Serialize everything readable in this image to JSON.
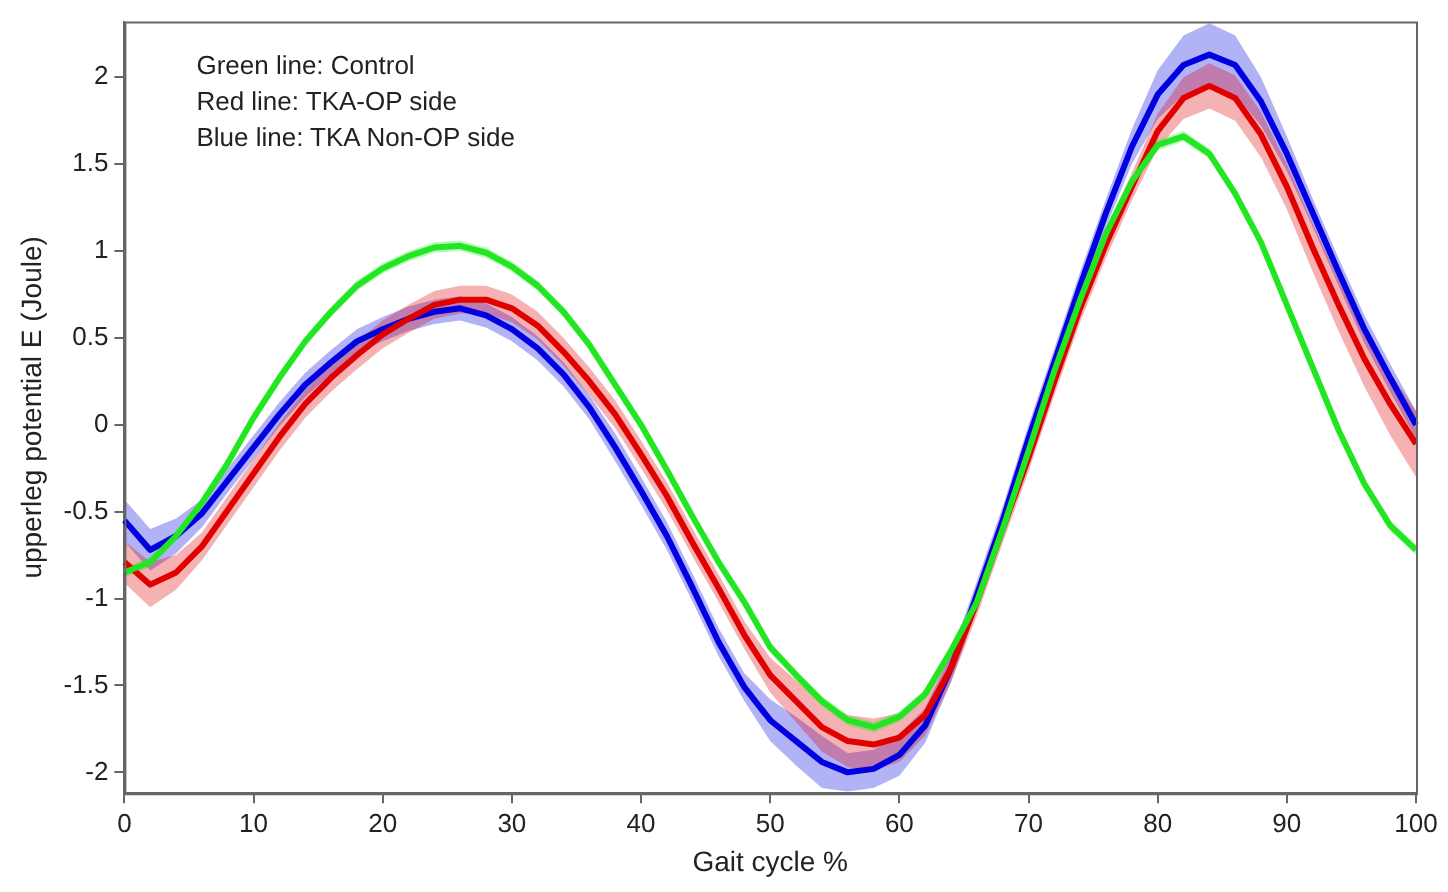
{
  "chart_data": {
    "type": "line",
    "xlabel": "Gait cycle %",
    "ylabel": "upperleg potential E (Joule)",
    "annotations": [
      "Green line: Control",
      "Red line: TKA-OP side",
      "Blue line: TKA Non-OP side"
    ],
    "x": [
      0,
      2,
      4,
      6,
      8,
      10,
      12,
      14,
      16,
      18,
      20,
      22,
      24,
      26,
      28,
      30,
      32,
      34,
      36,
      38,
      40,
      42,
      44,
      46,
      48,
      50,
      52,
      54,
      56,
      58,
      60,
      62,
      64,
      66,
      68,
      70,
      72,
      74,
      76,
      78,
      80,
      82,
      84,
      86,
      88,
      90,
      92,
      94,
      96,
      98,
      100
    ],
    "xlim": [
      0,
      100
    ],
    "xticks": [
      0,
      10,
      20,
      30,
      40,
      50,
      60,
      70,
      80,
      90,
      100
    ],
    "ylim": [
      -2.12,
      2.32
    ],
    "yticks": [
      -2,
      -1.5,
      -1,
      -0.5,
      0,
      0.5,
      1,
      1.5,
      2
    ],
    "grid": false,
    "legend": false,
    "marker": "none",
    "line_style": "solid",
    "series": [
      {
        "color": "#22e622",
        "values": [
          -0.85,
          -0.79,
          -0.64,
          -0.45,
          -0.22,
          0.04,
          0.27,
          0.48,
          0.65,
          0.8,
          0.9,
          0.97,
          1.02,
          1.03,
          0.99,
          0.91,
          0.8,
          0.65,
          0.46,
          0.23,
          0.0,
          -0.26,
          -0.53,
          -0.79,
          -1.02,
          -1.28,
          -1.44,
          -1.59,
          -1.7,
          -1.74,
          -1.68,
          -1.55,
          -1.3,
          -1.02,
          -0.6,
          -0.15,
          0.31,
          0.72,
          1.1,
          1.4,
          1.61,
          1.66,
          1.56,
          1.33,
          1.05,
          0.69,
          0.33,
          -0.03,
          -0.34,
          -0.58,
          -0.72
        ],
        "upper": [
          -0.82,
          -0.76,
          -0.61,
          -0.42,
          -0.19,
          0.07,
          0.3,
          0.51,
          0.68,
          0.83,
          0.93,
          1.0,
          1.05,
          1.06,
          1.02,
          0.94,
          0.83,
          0.68,
          0.49,
          0.26,
          0.03,
          -0.23,
          -0.5,
          -0.76,
          -0.99,
          -1.25,
          -1.41,
          -1.56,
          -1.67,
          -1.71,
          -1.65,
          -1.52,
          -1.27,
          -0.99,
          -0.57,
          -0.12,
          0.34,
          0.75,
          1.13,
          1.43,
          1.64,
          1.69,
          1.59,
          1.36,
          1.08,
          0.72,
          0.36,
          0.0,
          -0.31,
          -0.55,
          -0.69
        ],
        "lower": [
          -0.88,
          -0.82,
          -0.67,
          -0.48,
          -0.25,
          0.01,
          0.24,
          0.45,
          0.62,
          0.77,
          0.87,
          0.94,
          0.99,
          1.0,
          0.96,
          0.88,
          0.77,
          0.62,
          0.43,
          0.2,
          -0.03,
          -0.29,
          -0.56,
          -0.82,
          -1.05,
          -1.31,
          -1.47,
          -1.62,
          -1.73,
          -1.77,
          -1.71,
          -1.58,
          -1.33,
          -1.05,
          -0.63,
          -0.18,
          0.28,
          0.69,
          1.07,
          1.37,
          1.58,
          1.63,
          1.53,
          1.3,
          1.02,
          0.66,
          0.3,
          -0.06,
          -0.37,
          -0.61,
          -0.75
        ]
      },
      {
        "color": "#e00000",
        "values": [
          -0.79,
          -0.92,
          -0.85,
          -0.7,
          -0.49,
          -0.28,
          -0.07,
          0.12,
          0.27,
          0.4,
          0.52,
          0.61,
          0.69,
          0.72,
          0.72,
          0.67,
          0.57,
          0.42,
          0.25,
          0.06,
          -0.17,
          -0.41,
          -0.68,
          -0.94,
          -1.21,
          -1.44,
          -1.59,
          -1.74,
          -1.82,
          -1.84,
          -1.8,
          -1.67,
          -1.4,
          -1.02,
          -0.6,
          -0.19,
          0.25,
          0.67,
          1.04,
          1.37,
          1.69,
          1.88,
          1.95,
          1.88,
          1.67,
          1.37,
          1.02,
          0.69,
          0.38,
          0.12,
          -0.11
        ],
        "upper": [
          -0.67,
          -0.79,
          -0.75,
          -0.62,
          -0.41,
          -0.2,
          0.01,
          0.2,
          0.35,
          0.48,
          0.6,
          0.69,
          0.77,
          0.8,
          0.8,
          0.75,
          0.65,
          0.5,
          0.33,
          0.14,
          -0.09,
          -0.33,
          -0.6,
          -0.86,
          -1.13,
          -1.34,
          -1.47,
          -1.6,
          -1.67,
          -1.69,
          -1.66,
          -1.55,
          -1.32,
          -0.94,
          -0.52,
          -0.11,
          0.33,
          0.75,
          1.12,
          1.45,
          1.79,
          2.0,
          2.08,
          2.01,
          1.8,
          1.5,
          1.16,
          0.84,
          0.54,
          0.3,
          0.08
        ],
        "lower": [
          -0.91,
          -1.05,
          -0.95,
          -0.78,
          -0.57,
          -0.36,
          -0.15,
          0.04,
          0.19,
          0.32,
          0.44,
          0.53,
          0.61,
          0.64,
          0.64,
          0.59,
          0.49,
          0.34,
          0.17,
          -0.02,
          -0.25,
          -0.49,
          -0.76,
          -1.02,
          -1.29,
          -1.54,
          -1.71,
          -1.88,
          -1.97,
          -1.99,
          -1.94,
          -1.79,
          -1.48,
          -1.1,
          -0.68,
          -0.27,
          0.17,
          0.59,
          0.96,
          1.29,
          1.59,
          1.76,
          1.82,
          1.75,
          1.54,
          1.24,
          0.88,
          0.54,
          0.22,
          -0.06,
          -0.3
        ]
      },
      {
        "color": "#0000e0",
        "values": [
          -0.55,
          -0.72,
          -0.64,
          -0.51,
          -0.32,
          -0.13,
          0.06,
          0.23,
          0.36,
          0.48,
          0.55,
          0.61,
          0.65,
          0.67,
          0.63,
          0.55,
          0.44,
          0.29,
          0.1,
          -0.13,
          -0.38,
          -0.64,
          -0.94,
          -1.25,
          -1.51,
          -1.7,
          -1.82,
          -1.94,
          -2.0,
          -1.98,
          -1.9,
          -1.73,
          -1.4,
          -0.98,
          -0.55,
          -0.08,
          0.36,
          0.8,
          1.22,
          1.6,
          1.9,
          2.07,
          2.13,
          2.07,
          1.86,
          1.56,
          1.22,
          0.88,
          0.55,
          0.27,
          0.0
        ],
        "upper": [
          -0.43,
          -0.6,
          -0.54,
          -0.43,
          -0.25,
          -0.06,
          0.13,
          0.3,
          0.43,
          0.55,
          0.62,
          0.68,
          0.72,
          0.74,
          0.7,
          0.62,
          0.51,
          0.36,
          0.17,
          -0.05,
          -0.3,
          -0.56,
          -0.86,
          -1.17,
          -1.43,
          -1.58,
          -1.68,
          -1.79,
          -1.89,
          -1.87,
          -1.78,
          -1.63,
          -1.32,
          -0.9,
          -0.47,
          0.0,
          0.44,
          0.88,
          1.3,
          1.7,
          2.04,
          2.24,
          2.31,
          2.24,
          2.0,
          1.66,
          1.3,
          0.96,
          0.63,
          0.35,
          0.08
        ],
        "lower": [
          -0.67,
          -0.84,
          -0.74,
          -0.59,
          -0.39,
          -0.2,
          -0.01,
          0.16,
          0.29,
          0.41,
          0.48,
          0.54,
          0.58,
          0.6,
          0.56,
          0.48,
          0.37,
          0.22,
          0.03,
          -0.21,
          -0.46,
          -0.72,
          -1.02,
          -1.33,
          -1.59,
          -1.82,
          -1.96,
          -2.09,
          -2.11,
          -2.09,
          -2.02,
          -1.83,
          -1.48,
          -1.06,
          -0.63,
          -0.16,
          0.28,
          0.72,
          1.14,
          1.5,
          1.76,
          1.9,
          1.95,
          1.9,
          1.72,
          1.46,
          1.14,
          0.8,
          0.47,
          0.19,
          -0.08
        ]
      }
    ]
  }
}
